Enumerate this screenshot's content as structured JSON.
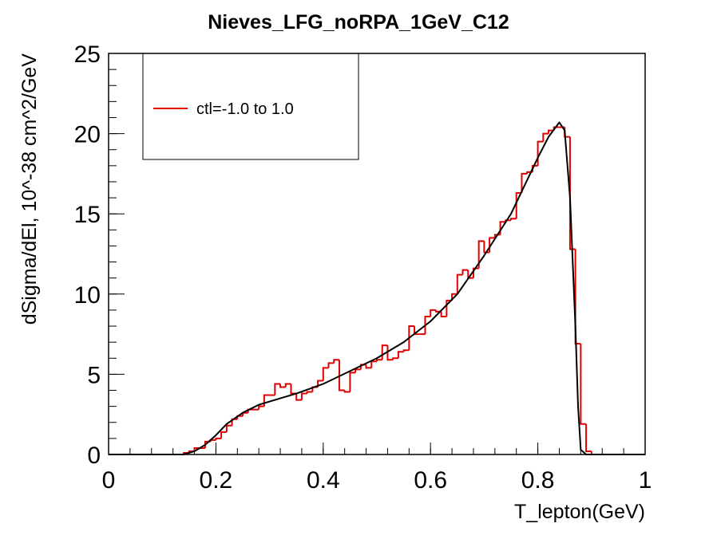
{
  "chart_data": {
    "type": "histogram",
    "title": "Nieves_LFG_noRPA_1GeV_C12",
    "x_label": "T_lepton(GeV)",
    "y_label": "dSigma/dEl, 10^-38 cm^2/GeV",
    "xlim": [
      0,
      1
    ],
    "ylim": [
      0,
      25
    ],
    "xticks": [
      0,
      0.2,
      0.4,
      0.6,
      0.8,
      1
    ],
    "yticks": [
      0,
      5,
      10,
      15,
      20,
      25
    ],
    "legend": "top-left",
    "bins": [
      0,
      0.01,
      0.02,
      0.03,
      0.04,
      0.05,
      0.06,
      0.07,
      0.08,
      0.09,
      0.1,
      0.11,
      0.12,
      0.13,
      0.14,
      0.15,
      0.16,
      0.17,
      0.18,
      0.19,
      0.2,
      0.21,
      0.22,
      0.23,
      0.24,
      0.25,
      0.26,
      0.27,
      0.28,
      0.29,
      0.3,
      0.31,
      0.32,
      0.33,
      0.34,
      0.35,
      0.36,
      0.37,
      0.38,
      0.39,
      0.4,
      0.41,
      0.42,
      0.43,
      0.44,
      0.45,
      0.46,
      0.47,
      0.48,
      0.49,
      0.5,
      0.51,
      0.52,
      0.53,
      0.54,
      0.55,
      0.56,
      0.57,
      0.58,
      0.59,
      0.6,
      0.61,
      0.62,
      0.63,
      0.64,
      0.65,
      0.66,
      0.67,
      0.68,
      0.69,
      0.7,
      0.71,
      0.72,
      0.73,
      0.74,
      0.75,
      0.76,
      0.77,
      0.78,
      0.79,
      0.8,
      0.81,
      0.82,
      0.83,
      0.84,
      0.85,
      0.86,
      0.87,
      0.88,
      0.89,
      0.9,
      0.91,
      0.92,
      0.93,
      0.94,
      0.95,
      0.96,
      0.97,
      0.98,
      0.99,
      1
    ],
    "series": [
      {
        "name": "ctl=-1.0 to 1.0",
        "color": "#e00000",
        "values": [
          0,
          0,
          0,
          0,
          0,
          0,
          0,
          0,
          0,
          0,
          0,
          0,
          0,
          0,
          0.1,
          0.2,
          0.4,
          0.4,
          0.8,
          0.9,
          1.0,
          1.4,
          1.8,
          2.2,
          2.4,
          2.6,
          2.8,
          2.8,
          3.0,
          3.7,
          3.7,
          4.4,
          4.2,
          4.4,
          3.8,
          3.4,
          3.8,
          3.9,
          4.2,
          4.6,
          5.4,
          5.7,
          5.9,
          4.0,
          3.9,
          5.1,
          5.3,
          5.6,
          5.4,
          5.8,
          5.9,
          6.8,
          5.9,
          6.0,
          6.4,
          6.5,
          8.0,
          7.5,
          7.5,
          8.6,
          9.0,
          8.9,
          8.6,
          9.6,
          10.0,
          11.2,
          11.5,
          11.0,
          11.6,
          13.3,
          12.6,
          13.5,
          13.7,
          14.5,
          14.6,
          14.7,
          16.3,
          17.5,
          17.6,
          18.0,
          19.5,
          20.0,
          20.2,
          20.4,
          20.4,
          19.8,
          12.8,
          6.9,
          1.9,
          0.2,
          0,
          0,
          0,
          0,
          0,
          0,
          0,
          0,
          0,
          0
        ]
      }
    ],
    "curve": {
      "type": "line",
      "color": "#000000",
      "x": [
        0,
        0.14,
        0.16,
        0.18,
        0.2,
        0.22,
        0.25,
        0.28,
        0.32,
        0.35,
        0.4,
        0.45,
        0.5,
        0.55,
        0.6,
        0.65,
        0.7,
        0.75,
        0.8,
        0.82,
        0.84,
        0.85,
        0.86,
        0.87,
        0.875,
        0.88,
        0.89,
        1
      ],
      "values": [
        0,
        0,
        0.2,
        0.6,
        1.2,
        1.9,
        2.6,
        3.1,
        3.5,
        3.8,
        4.4,
        5.2,
        6.0,
        7.0,
        8.3,
        10.0,
        12.4,
        15.0,
        18.5,
        19.8,
        20.7,
        20.2,
        16.0,
        8.0,
        3.0,
        0.3,
        0,
        0
      ]
    }
  }
}
